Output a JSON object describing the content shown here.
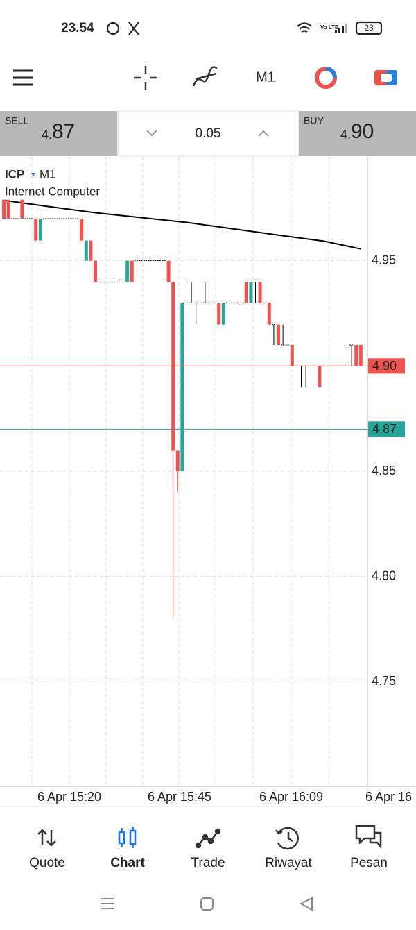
{
  "status_bar": {
    "time": "23.54",
    "battery": "23"
  },
  "toolbar": {
    "timeframe": "M1"
  },
  "trade_panel": {
    "sell_label": "SELL",
    "sell_price": {
      "small": "4.",
      "big": "87"
    },
    "volume": "0.05",
    "buy_label": "BUY",
    "buy_price": {
      "small": "4.",
      "big": "90"
    }
  },
  "chart": {
    "symbol": "ICP",
    "timeframe": "M1",
    "description": "Internet Computer",
    "ylim": [
      4.7,
      5.0
    ],
    "yticks": [
      4.95,
      {
        "value": 4.9,
        "label": "4.90"
      },
      4.85,
      {
        "value": 4.8,
        "label": "4.80"
      },
      4.75
    ],
    "xticks": [
      "6 Apr 15:20",
      "6 Apr 15:45",
      "6 Apr 16:09",
      "6 Apr 16"
    ],
    "up_color": "#26a69a",
    "down_color": "#ef5350",
    "flat_color": "#000000",
    "ma_color": "#000000",
    "ask": {
      "value": 4.9,
      "label": "4.90",
      "color": "#ef5350"
    },
    "bid": {
      "value": 4.87,
      "label": "4.87",
      "color": "#26a69a"
    },
    "candles": [
      [
        4.979,
        4.979,
        4.97,
        4.97
      ],
      [
        4.979,
        4.979,
        4.97,
        4.97
      ],
      [
        4.97,
        4.97,
        4.97,
        4.97
      ],
      [
        4.97,
        4.97,
        4.97,
        4.97
      ],
      [
        4.979,
        4.979,
        4.97,
        4.97
      ],
      [
        4.97,
        4.97,
        4.97,
        4.97
      ],
      [
        4.97,
        4.97,
        4.97,
        4.97
      ],
      [
        4.97,
        4.97,
        4.9596,
        4.9596
      ],
      [
        4.9596,
        4.97,
        4.9596,
        4.97
      ],
      [
        4.97,
        4.97,
        4.97,
        4.97
      ],
      [
        4.97,
        4.97,
        4.97,
        4.97
      ],
      [
        4.97,
        4.97,
        4.97,
        4.97
      ],
      [
        4.97,
        4.97,
        4.97,
        4.97
      ],
      [
        4.97,
        4.97,
        4.97,
        4.97
      ],
      [
        4.97,
        4.97,
        4.97,
        4.97
      ],
      [
        4.97,
        4.97,
        4.97,
        4.97
      ],
      [
        4.97,
        4.97,
        4.97,
        4.97
      ],
      [
        4.97,
        4.97,
        4.9596,
        4.9596
      ],
      [
        4.95,
        4.9596,
        4.95,
        4.9596
      ],
      [
        4.9596,
        4.9596,
        4.95,
        4.95
      ],
      [
        4.95,
        4.95,
        4.9398,
        4.9398
      ],
      [
        4.9398,
        4.9398,
        4.9398,
        4.9398
      ],
      [
        4.9398,
        4.9398,
        4.9398,
        4.9398
      ],
      [
        4.9398,
        4.9398,
        4.9398,
        4.9398
      ],
      [
        4.9398,
        4.9398,
        4.9398,
        4.9398
      ],
      [
        4.9398,
        4.9398,
        4.9398,
        4.9398
      ],
      [
        4.9398,
        4.9398,
        4.9398,
        4.9398
      ],
      [
        4.9398,
        4.95,
        4.9398,
        4.95
      ],
      [
        4.95,
        4.95,
        4.9398,
        4.9398
      ],
      [
        4.95,
        4.95,
        4.95,
        4.95
      ],
      [
        4.95,
        4.95,
        4.95,
        4.95
      ],
      [
        4.95,
        4.95,
        4.95,
        4.95
      ],
      [
        4.95,
        4.95,
        4.95,
        4.95
      ],
      [
        4.95,
        4.95,
        4.95,
        4.95
      ],
      [
        4.95,
        4.95,
        4.95,
        4.95
      ],
      [
        4.95,
        4.95,
        4.9398,
        4.95
      ],
      [
        4.95,
        4.95,
        4.9398,
        4.9398
      ],
      [
        4.9398,
        4.9398,
        4.7806,
        4.8597
      ],
      [
        4.8597,
        4.8597,
        4.84,
        4.85
      ],
      [
        4.85,
        4.93,
        4.85,
        4.93
      ],
      [
        4.93,
        4.9398,
        4.93,
        4.93
      ],
      [
        4.93,
        4.9398,
        4.93,
        4.93
      ],
      [
        4.93,
        4.93,
        4.9197,
        4.93
      ],
      [
        4.93,
        4.93,
        4.93,
        4.93
      ],
      [
        4.93,
        4.9398,
        4.93,
        4.93
      ],
      [
        4.93,
        4.93,
        4.93,
        4.93
      ],
      [
        4.93,
        4.93,
        4.93,
        4.93
      ],
      [
        4.93,
        4.93,
        4.9197,
        4.9197
      ],
      [
        4.9197,
        4.93,
        4.9197,
        4.93
      ],
      [
        4.93,
        4.93,
        4.93,
        4.93
      ],
      [
        4.93,
        4.93,
        4.93,
        4.93
      ],
      [
        4.93,
        4.93,
        4.93,
        4.93
      ],
      [
        4.93,
        4.93,
        4.93,
        4.93
      ],
      [
        4.9398,
        4.9398,
        4.93,
        4.93
      ],
      [
        4.93,
        4.9398,
        4.93,
        4.9398
      ],
      [
        4.9398,
        4.9398,
        4.93,
        4.9398
      ],
      [
        4.9398,
        4.9398,
        4.93,
        4.93
      ],
      [
        4.93,
        4.93,
        4.93,
        4.93
      ],
      [
        4.93,
        4.93,
        4.9197,
        4.9197
      ],
      [
        4.9197,
        4.9197,
        4.91,
        4.9197
      ],
      [
        4.9197,
        4.9197,
        4.91,
        4.91
      ],
      [
        4.91,
        4.9197,
        4.91,
        4.91
      ],
      [
        4.91,
        4.91,
        4.91,
        4.91
      ],
      [
        4.91,
        4.91,
        4.9,
        4.9
      ],
      [
        4.9,
        4.9,
        4.9,
        4.9
      ],
      [
        4.9,
        4.9,
        4.89,
        4.9
      ],
      [
        4.9,
        4.9,
        4.89,
        4.9
      ],
      [
        4.9,
        4.9,
        4.9,
        4.9
      ],
      [
        4.9,
        4.9,
        4.9,
        4.9
      ],
      [
        4.9,
        4.9,
        4.89,
        4.89
      ],
      [
        4.9,
        4.9,
        4.9,
        4.9
      ],
      [
        4.9,
        4.9,
        4.9,
        4.9
      ],
      [
        4.9,
        4.9,
        4.9,
        4.9
      ],
      [
        4.9,
        4.9,
        4.9,
        4.9
      ],
      [
        4.9,
        4.9,
        4.9,
        4.9
      ],
      [
        4.9,
        4.91,
        4.9,
        4.9
      ],
      [
        4.91,
        4.91,
        4.9,
        4.91
      ],
      [
        4.91,
        4.91,
        4.9,
        4.9
      ],
      [
        4.91,
        4.91,
        4.9,
        4.9
      ]
    ],
    "ma": [
      [
        0,
        4.9787
      ],
      [
        10,
        4.9757
      ],
      [
        20,
        4.9728
      ],
      [
        30,
        4.9705
      ],
      [
        40,
        4.9682
      ],
      [
        50,
        4.9652
      ],
      [
        60,
        4.9622
      ],
      [
        70,
        4.9593
      ],
      [
        78,
        4.9556
      ]
    ]
  },
  "bottom_nav": {
    "items": [
      "Quote",
      "Chart",
      "Trade",
      "Riwayat",
      "Pesan"
    ],
    "active": "Chart"
  }
}
